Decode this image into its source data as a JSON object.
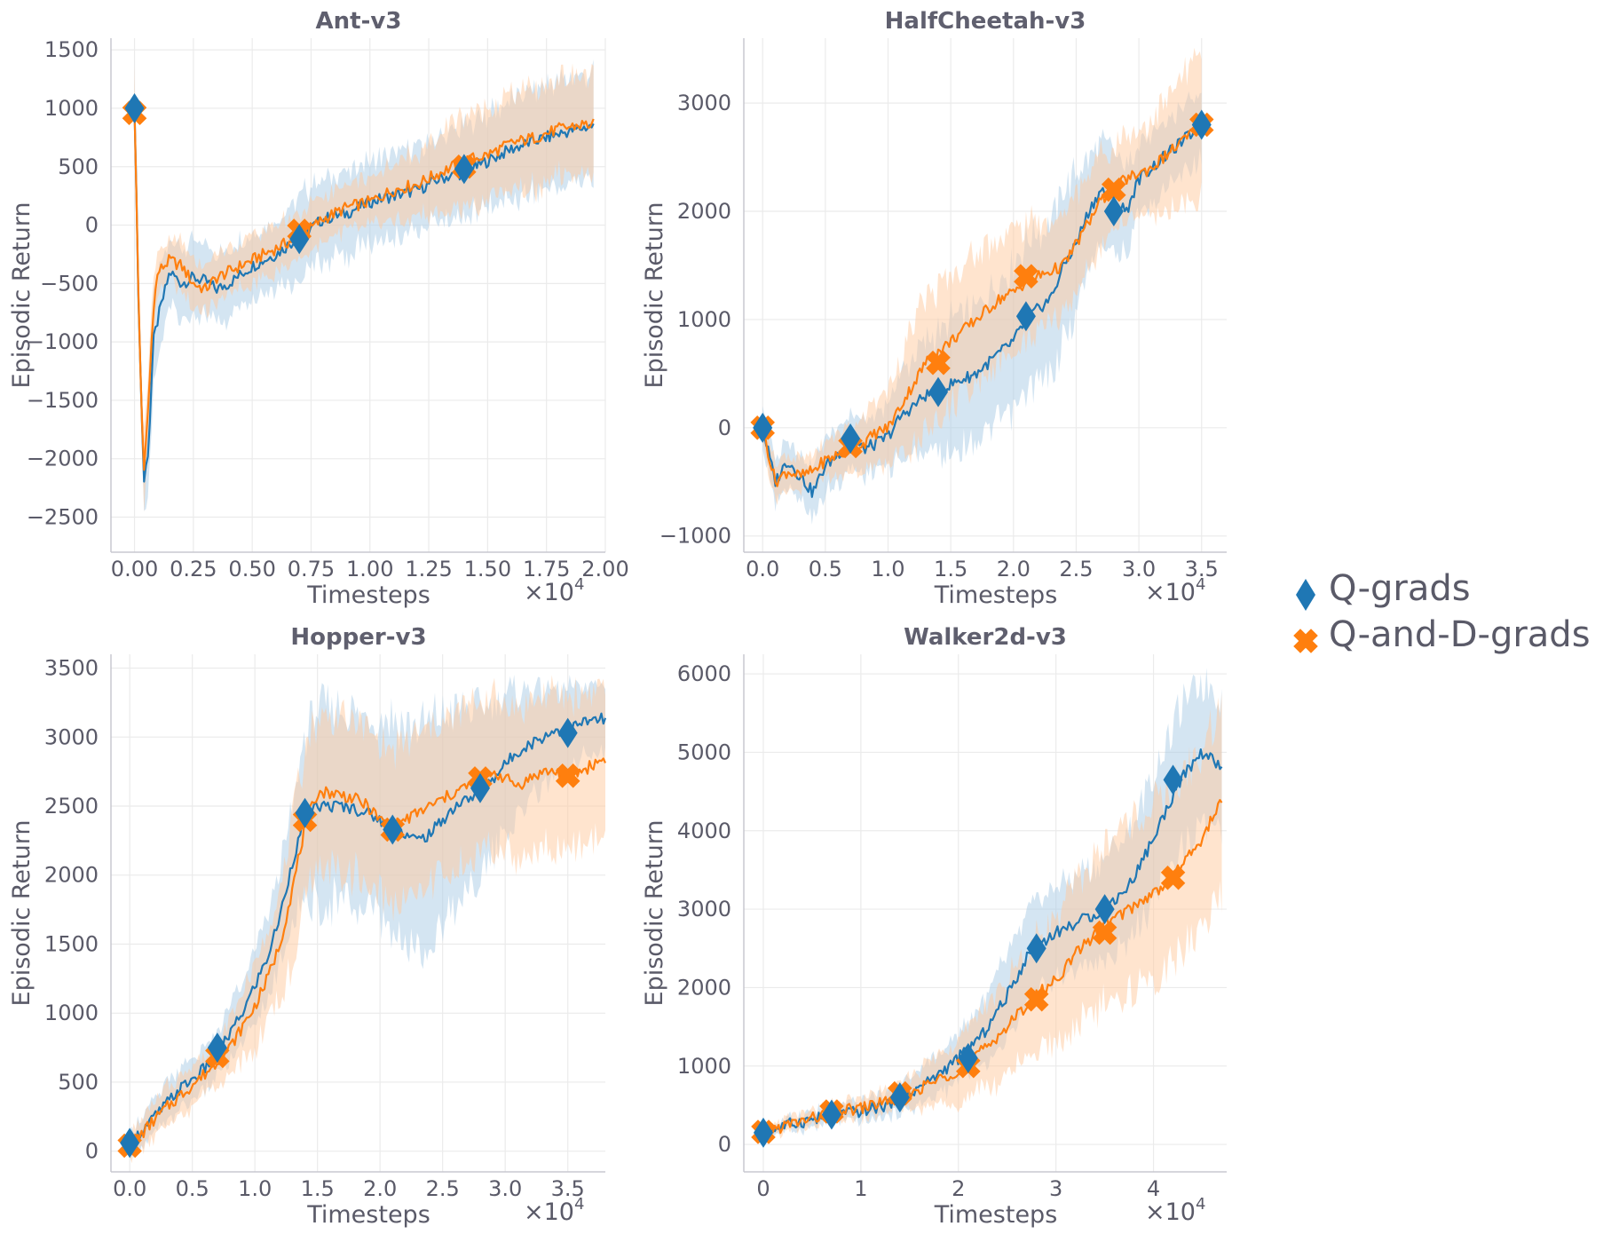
{
  "legend": {
    "items": [
      {
        "label": "Q-grads",
        "color": "#1f77b4",
        "marker": "diamond"
      },
      {
        "label": "Q-and-D-grads",
        "color": "#ff7f0e",
        "marker": "x-cross"
      }
    ]
  },
  "chart_data": [
    {
      "type": "line",
      "title": "Ant-v3",
      "xlabel": "Timesteps",
      "ylabel": "Episodic Return",
      "x_multiplier": "×10",
      "x_multiplier_exp": "4",
      "xlim": [
        -0.1,
        2.0
      ],
      "ylim": [
        -2800,
        1600
      ],
      "xticks": [
        0.0,
        0.25,
        0.5,
        0.75,
        1.0,
        1.25,
        1.5,
        1.75,
        2.0
      ],
      "xtick_labels": [
        "0.00",
        "0.25",
        "0.50",
        "0.75",
        "1.00",
        "1.25",
        "1.50",
        "1.75",
        "2.00"
      ],
      "yticks": [
        -2500,
        -2000,
        -1500,
        -1000,
        -500,
        0,
        500,
        1000,
        1500
      ],
      "ytick_labels": [
        "−2500",
        "−2000",
        "−1500",
        "−1000",
        "−500",
        "0",
        "500",
        "1000",
        "1500"
      ],
      "series": [
        {
          "name": "Q-grads",
          "color": "#1f77b4",
          "x": [
            0,
            0.02,
            0.04,
            0.06,
            0.08,
            0.1,
            0.15,
            0.2,
            0.25,
            0.3,
            0.35,
            0.4,
            0.5,
            0.6,
            0.7,
            0.8,
            0.9,
            1.0,
            1.1,
            1.2,
            1.3,
            1.4,
            1.5,
            1.6,
            1.7,
            1.8,
            1.9,
            1.95
          ],
          "y": [
            1000,
            -900,
            -2200,
            -1900,
            -1000,
            -800,
            -400,
            -500,
            -450,
            -480,
            -550,
            -500,
            -350,
            -250,
            -100,
            50,
            100,
            200,
            250,
            300,
            400,
            450,
            550,
            650,
            720,
            780,
            830,
            850
          ],
          "band": [
            300,
            0,
            300,
            300,
            400,
            350,
            300,
            300,
            300,
            300,
            300,
            300,
            300,
            300,
            350,
            350,
            350,
            350,
            350,
            350,
            350,
            380,
            400,
            420,
            430,
            450,
            450,
            450
          ],
          "markers_x": [
            0,
            0.7,
            1.4
          ],
          "markers_y": [
            1000,
            -120,
            480
          ]
        },
        {
          "name": "Q-and-D-grads",
          "color": "#ff7f0e",
          "x": [
            0,
            0.02,
            0.04,
            0.06,
            0.08,
            0.1,
            0.15,
            0.2,
            0.25,
            0.3,
            0.35,
            0.4,
            0.5,
            0.6,
            0.7,
            0.8,
            0.9,
            1.0,
            1.1,
            1.2,
            1.3,
            1.4,
            1.5,
            1.6,
            1.7,
            1.8,
            1.9,
            1.95
          ],
          "y": [
            1000,
            -900,
            -2150,
            -1500,
            -700,
            -400,
            -300,
            -350,
            -500,
            -550,
            -450,
            -400,
            -300,
            -200,
            -100,
            50,
            150,
            200,
            300,
            350,
            450,
            550,
            600,
            700,
            750,
            820,
            860,
            860
          ],
          "band": [
            300,
            0,
            300,
            300,
            300,
            150,
            150,
            200,
            200,
            200,
            200,
            200,
            200,
            200,
            200,
            200,
            200,
            200,
            250,
            250,
            350,
            400,
            400,
            400,
            420,
            420,
            420,
            420
          ],
          "markers_x": [
            0,
            0.7,
            1.4
          ],
          "markers_y": [
            960,
            -50,
            500
          ]
        }
      ]
    },
    {
      "type": "line",
      "title": "HalfCheetah-v3",
      "xlabel": "Timesteps",
      "ylabel": "Episodic Return",
      "x_multiplier": "×10",
      "x_multiplier_exp": "4",
      "xlim": [
        -0.15,
        3.7
      ],
      "ylim": [
        -1150,
        3600
      ],
      "xticks": [
        0.0,
        0.5,
        1.0,
        1.5,
        2.0,
        2.5,
        3.0,
        3.5
      ],
      "xtick_labels": [
        "0.0",
        "0.5",
        "1.0",
        "1.5",
        "2.0",
        "2.5",
        "3.0",
        "3.5"
      ],
      "yticks": [
        -1000,
        0,
        1000,
        2000,
        3000
      ],
      "ytick_labels": [
        "−1000",
        "0",
        "1000",
        "2000",
        "3000"
      ],
      "series": [
        {
          "name": "Q-grads",
          "color": "#1f77b4",
          "x": [
            0,
            0.1,
            0.2,
            0.3,
            0.4,
            0.5,
            0.6,
            0.7,
            0.8,
            0.9,
            1.0,
            1.1,
            1.2,
            1.3,
            1.4,
            1.5,
            1.6,
            1.7,
            1.8,
            1.9,
            2.0,
            2.1,
            2.2,
            2.3,
            2.4,
            2.5,
            2.6,
            2.7,
            2.8,
            2.9,
            3.0,
            3.1,
            3.2,
            3.3,
            3.4,
            3.5
          ],
          "y": [
            0,
            -500,
            -300,
            -450,
            -600,
            -350,
            -250,
            -100,
            -200,
            -150,
            -80,
            100,
            200,
            300,
            320,
            400,
            450,
            500,
            600,
            700,
            800,
            1000,
            1100,
            1200,
            1500,
            1700,
            2000,
            2200,
            2100,
            2000,
            2300,
            2400,
            2500,
            2600,
            2700,
            2800
          ],
          "band": [
            200,
            200,
            200,
            200,
            250,
            250,
            250,
            250,
            250,
            250,
            300,
            400,
            450,
            500,
            550,
            600,
            600,
            600,
            650,
            650,
            700,
            700,
            700,
            700,
            700,
            650,
            500,
            450,
            450,
            400,
            350,
            300,
            300,
            300,
            300,
            300
          ],
          "markers_x": [
            0,
            0.7,
            1.4,
            2.1,
            2.8,
            3.5
          ],
          "markers_y": [
            0,
            -100,
            330,
            1030,
            2000,
            2800
          ]
        },
        {
          "name": "Q-and-D-grads",
          "color": "#ff7f0e",
          "x": [
            0,
            0.1,
            0.2,
            0.3,
            0.4,
            0.5,
            0.6,
            0.7,
            0.8,
            0.9,
            1.0,
            1.1,
            1.2,
            1.3,
            1.4,
            1.5,
            1.6,
            1.7,
            1.8,
            1.9,
            2.0,
            2.1,
            2.2,
            2.3,
            2.4,
            2.5,
            2.6,
            2.7,
            2.8,
            2.9,
            3.0,
            3.1,
            3.2,
            3.3,
            3.4,
            3.5
          ],
          "y": [
            0,
            -500,
            -400,
            -450,
            -400,
            -300,
            -250,
            -200,
            -150,
            -50,
            0,
            200,
            400,
            600,
            700,
            800,
            900,
            1000,
            1100,
            1200,
            1250,
            1350,
            1400,
            1450,
            1500,
            1700,
            1900,
            2100,
            2200,
            2300,
            2350,
            2400,
            2500,
            2600,
            2700,
            2800
          ],
          "band": [
            150,
            150,
            150,
            150,
            150,
            150,
            200,
            200,
            250,
            300,
            350,
            450,
            550,
            600,
            600,
            600,
            600,
            600,
            600,
            600,
            550,
            550,
            500,
            450,
            450,
            450,
            450,
            450,
            400,
            400,
            400,
            450,
            500,
            550,
            600,
            650
          ],
          "markers_x": [
            0,
            0.7,
            1.4,
            2.1,
            2.8,
            3.5
          ],
          "markers_y": [
            0,
            -170,
            600,
            1400,
            2200,
            2800
          ]
        }
      ]
    },
    {
      "type": "line",
      "title": "Hopper-v3",
      "xlabel": "Timesteps",
      "ylabel": "Episodic Return",
      "x_multiplier": "×10",
      "x_multiplier_exp": "4",
      "xlim": [
        -0.15,
        3.8
      ],
      "ylim": [
        -150,
        3600
      ],
      "xticks": [
        0.0,
        0.5,
        1.0,
        1.5,
        2.0,
        2.5,
        3.0,
        3.5
      ],
      "xtick_labels": [
        "0.0",
        "0.5",
        "1.0",
        "1.5",
        "2.0",
        "2.5",
        "3.0",
        "3.5"
      ],
      "yticks": [
        0,
        500,
        1000,
        1500,
        2000,
        2500,
        3000,
        3500
      ],
      "ytick_labels": [
        "0",
        "500",
        "1000",
        "1500",
        "2000",
        "2500",
        "3000",
        "3500"
      ],
      "series": [
        {
          "name": "Q-grads",
          "color": "#1f77b4",
          "x": [
            0,
            0.1,
            0.2,
            0.3,
            0.4,
            0.5,
            0.6,
            0.7,
            0.8,
            0.9,
            1.0,
            1.1,
            1.2,
            1.3,
            1.4,
            1.5,
            1.6,
            1.7,
            1.8,
            1.9,
            2.0,
            2.1,
            2.2,
            2.3,
            2.4,
            2.5,
            2.6,
            2.7,
            2.8,
            2.9,
            3.0,
            3.1,
            3.2,
            3.3,
            3.4,
            3.5,
            3.6,
            3.7,
            3.8
          ],
          "y": [
            50,
            150,
            250,
            350,
            450,
            520,
            600,
            700,
            850,
            1000,
            1200,
            1400,
            1700,
            2100,
            2400,
            2500,
            2500,
            2500,
            2480,
            2450,
            2400,
            2350,
            2300,
            2250,
            2300,
            2400,
            2500,
            2550,
            2600,
            2700,
            2800,
            2900,
            2950,
            3000,
            3050,
            3050,
            3100,
            3120,
            3130
          ],
          "band": [
            80,
            100,
            120,
            150,
            150,
            150,
            150,
            150,
            200,
            200,
            250,
            300,
            350,
            400,
            600,
            700,
            700,
            700,
            700,
            700,
            750,
            800,
            800,
            800,
            800,
            750,
            700,
            650,
            600,
            550,
            500,
            450,
            400,
            350,
            300,
            300,
            250,
            250,
            250
          ],
          "markers_x": [
            0,
            0.7,
            1.4,
            2.1,
            2.8,
            3.5
          ],
          "markers_y": [
            60,
            750,
            2450,
            2330,
            2630,
            3030
          ]
        },
        {
          "name": "Q-and-D-grads",
          "color": "#ff7f0e",
          "x": [
            0,
            0.1,
            0.2,
            0.3,
            0.4,
            0.5,
            0.6,
            0.7,
            0.8,
            0.9,
            1.0,
            1.1,
            1.2,
            1.3,
            1.4,
            1.5,
            1.6,
            1.7,
            1.8,
            1.9,
            2.0,
            2.1,
            2.2,
            2.3,
            2.4,
            2.5,
            2.6,
            2.7,
            2.8,
            2.9,
            3.0,
            3.1,
            3.2,
            3.3,
            3.4,
            3.5,
            3.6,
            3.7,
            3.8
          ],
          "y": [
            30,
            130,
            230,
            320,
            400,
            480,
            560,
            650,
            750,
            900,
            1050,
            1250,
            1500,
            1900,
            2350,
            2600,
            2600,
            2580,
            2550,
            2500,
            2400,
            2350,
            2400,
            2450,
            2500,
            2550,
            2600,
            2650,
            2700,
            2750,
            2700,
            2650,
            2700,
            2750,
            2750,
            2720,
            2750,
            2800,
            2850
          ],
          "band": [
            80,
            100,
            120,
            150,
            150,
            150,
            150,
            150,
            200,
            250,
            300,
            350,
            400,
            500,
            550,
            550,
            550,
            550,
            550,
            550,
            550,
            550,
            550,
            550,
            550,
            550,
            550,
            550,
            550,
            550,
            550,
            550,
            550,
            550,
            550,
            550,
            550,
            550,
            550
          ],
          "markers_x": [
            0,
            0.7,
            1.4,
            2.1,
            2.8,
            3.5
          ],
          "markers_y": [
            40,
            690,
            2400,
            2330,
            2700,
            2720
          ]
        }
      ]
    },
    {
      "type": "line",
      "title": "Walker2d-v3",
      "xlabel": "Timesteps",
      "ylabel": "Episodic Return",
      "x_multiplier": "×10",
      "x_multiplier_exp": "4",
      "xlim": [
        -0.2,
        4.75
      ],
      "ylim": [
        -350,
        6250
      ],
      "xticks": [
        0,
        1,
        2,
        3,
        4
      ],
      "xtick_labels": [
        "0",
        "1",
        "2",
        "3",
        "4"
      ],
      "yticks": [
        0,
        1000,
        2000,
        3000,
        4000,
        5000,
        6000
      ],
      "ytick_labels": [
        "0",
        "1000",
        "2000",
        "3000",
        "4000",
        "5000",
        "6000"
      ],
      "series": [
        {
          "name": "Q-grads",
          "color": "#1f77b4",
          "x": [
            0,
            0.25,
            0.5,
            0.75,
            1.0,
            1.25,
            1.5,
            1.75,
            2.0,
            2.25,
            2.5,
            2.75,
            3.0,
            3.25,
            3.5,
            3.75,
            4.0,
            4.25,
            4.5,
            4.7
          ],
          "y": [
            150,
            250,
            320,
            380,
            420,
            500,
            650,
            850,
            1100,
            1400,
            1900,
            2500,
            2700,
            2850,
            3000,
            3300,
            3900,
            4600,
            5000,
            4800
          ],
          "band": [
            60,
            80,
            100,
            100,
            120,
            150,
            200,
            250,
            300,
            400,
            500,
            550,
            600,
            600,
            650,
            700,
            800,
            900,
            900,
            900
          ],
          "markers_x": [
            0,
            0.7,
            1.4,
            2.1,
            2.8,
            3.5,
            4.2
          ],
          "markers_y": [
            150,
            380,
            600,
            1100,
            2500,
            3000,
            4650
          ]
        },
        {
          "name": "Q-and-D-grads",
          "color": "#ff7f0e",
          "x": [
            0,
            0.25,
            0.5,
            0.75,
            1.0,
            1.25,
            1.5,
            1.75,
            2.0,
            2.25,
            2.5,
            2.75,
            3.0,
            3.25,
            3.5,
            3.75,
            4.0,
            4.25,
            4.5,
            4.7
          ],
          "y": [
            150,
            250,
            330,
            420,
            460,
            550,
            650,
            800,
            950,
            1200,
            1500,
            1850,
            2100,
            2500,
            2800,
            3000,
            3200,
            3500,
            3900,
            4400
          ],
          "band": [
            60,
            80,
            100,
            100,
            120,
            150,
            200,
            300,
            400,
            500,
            600,
            700,
            800,
            900,
            1000,
            1100,
            1100,
            1100,
            1100,
            1200
          ],
          "markers_x": [
            0,
            0.7,
            1.4,
            2.1,
            2.8,
            3.5,
            4.2
          ],
          "markers_y": [
            160,
            420,
            650,
            1000,
            1850,
            2700,
            3400
          ]
        }
      ]
    }
  ]
}
